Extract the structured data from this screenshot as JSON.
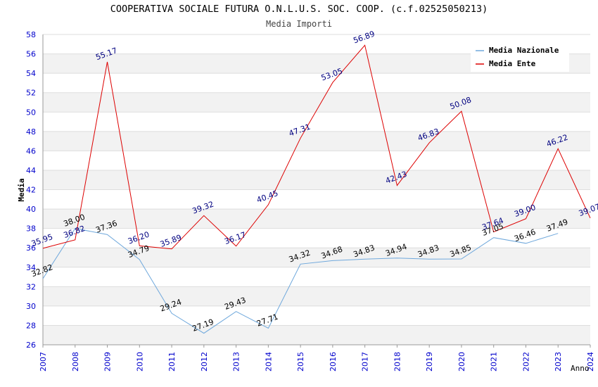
{
  "chart_data": {
    "type": "line",
    "title": "COOPERATIVA SOCIALE FUTURA O.N.L.U.S. SOC. COOP. (c.f.02525050213)",
    "subtitle": "Media Importi",
    "xlabel": "Anno",
    "ylabel": "Media",
    "ylim": [
      26,
      58
    ],
    "yticks": [
      26,
      28,
      30,
      32,
      34,
      36,
      38,
      40,
      42,
      44,
      46,
      48,
      50,
      52,
      54,
      56,
      58
    ],
    "x": [
      "2007",
      "2008",
      "2009",
      "2010",
      "2011",
      "2012",
      "2013",
      "2014",
      "2015",
      "2016",
      "2017",
      "2018",
      "2019",
      "2020",
      "2021",
      "2022",
      "2023",
      "2024"
    ],
    "grid": true,
    "legend_position": "top-right",
    "series": [
      {
        "name": "Media Nazionale",
        "color": "#6fa8dc",
        "values": [
          32.82,
          38.0,
          37.36,
          34.79,
          29.24,
          27.19,
          29.43,
          27.71,
          34.32,
          34.68,
          34.83,
          34.94,
          34.83,
          34.85,
          37.05,
          36.46,
          37.49,
          null
        ],
        "labels": [
          "32.82",
          "38.00",
          "37.36",
          "34.79",
          "29.24",
          "27.19",
          "29.43",
          "27.71",
          "34.32",
          "34.68",
          "34.83",
          "34.94",
          "34.83",
          "34.85",
          "37.05",
          "36.46",
          "37.49",
          null
        ]
      },
      {
        "name": "Media Ente",
        "color": "#dd0000",
        "values": [
          35.95,
          36.82,
          55.17,
          36.2,
          35.89,
          39.32,
          36.17,
          40.45,
          47.31,
          53.05,
          56.89,
          42.43,
          46.83,
          50.08,
          37.64,
          39.0,
          46.22,
          39.07
        ],
        "labels": [
          "35.95",
          "36.82",
          "55.17",
          "36.20",
          "35.89",
          "39.32",
          "36.17",
          "40.45",
          "47.31",
          "53.05",
          "56.89",
          "42.43",
          "46.83",
          "50.08",
          "37.64",
          "39.00",
          "46.22",
          "39.07"
        ]
      }
    ]
  }
}
